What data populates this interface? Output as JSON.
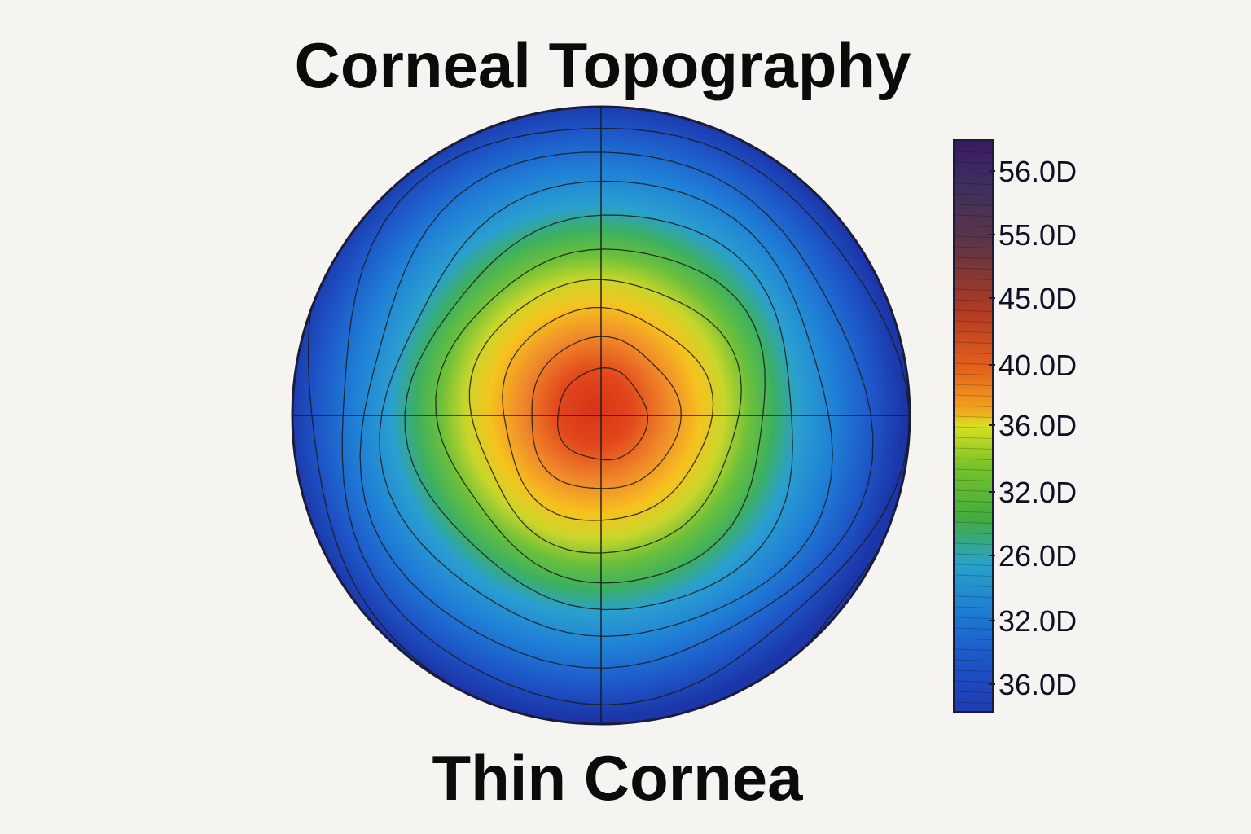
{
  "header": {
    "title": "Corneal Topography"
  },
  "footer": {
    "subtitle": "Thin Cornea"
  },
  "chart_data": {
    "type": "heatmap",
    "title": "Corneal Topography",
    "subtitle": "Thin Cornea",
    "map_shape": "circle",
    "crosshair": true,
    "contour_rings": 10,
    "colorbar": {
      "position": "right",
      "orientation": "vertical",
      "tick_labels": [
        "56.0D",
        "55.0D",
        "45.0D",
        "40.0D",
        "36.0D",
        "32.0D",
        "26.0D",
        "32.0D",
        "36.0D"
      ],
      "colors_top_to_bottom": [
        "#3a1a63",
        "#3e3a5e",
        "#5e3546",
        "#b23a22",
        "#e4621c",
        "#f2a21f",
        "#d8e020",
        "#78c22a",
        "#43ad3c",
        "#2aa3c8",
        "#1f7fd3",
        "#1d55c8",
        "#1f3bb0"
      ]
    },
    "colors": {
      "center": "#d63418",
      "mid": "#f6c21e",
      "green": "#45b83a",
      "outer": "#1f4ec2",
      "edge": "#17289a",
      "contour": "#1a1a1a"
    }
  }
}
